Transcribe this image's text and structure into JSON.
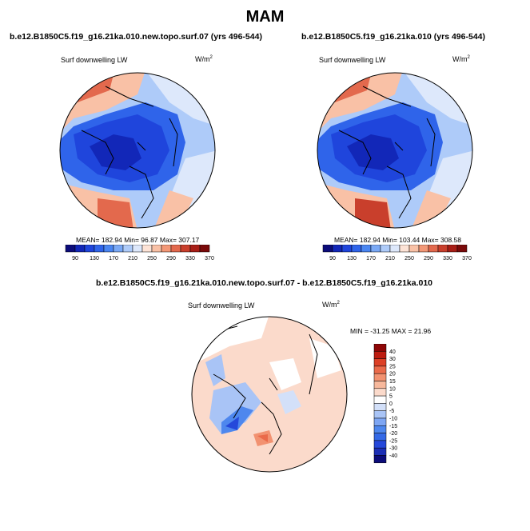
{
  "main_title": "MAM",
  "colors": {
    "abs_palette": [
      "#0c0c7a",
      "#1227b8",
      "#1f45dc",
      "#2f64ea",
      "#4a86f2",
      "#7aa9f6",
      "#aecbf9",
      "#dde8fb",
      "#fde3d6",
      "#f9c1a6",
      "#f39877",
      "#e3694d",
      "#c93f2c",
      "#a81e16",
      "#7a0a0a"
    ],
    "diff_palette": [
      "#0c0c7a",
      "#1c2fb5",
      "#2548da",
      "#3469e6",
      "#4e87ee",
      "#7ea6f3",
      "#a9c4f6",
      "#d3e0f9",
      "#ffffff",
      "#fbdacb",
      "#f7b89c",
      "#f29271",
      "#ea6a4a",
      "#dc4026",
      "#bd1c10",
      "#8e0606"
    ],
    "land_outline": "#000000"
  },
  "panels": [
    {
      "title": "b.e12.B1850C5.f19_g16.21ka.010.new.topo.surf.07 (yrs 496-544)",
      "variable": "Surf downwelling LW",
      "units": "W/m",
      "units_sup": "2",
      "stats": "MEAN= 182.94  Min=  96.87  Max= 307.17",
      "colorbar_labels": [
        "90",
        "130",
        "170",
        "210",
        "250",
        "290",
        "330",
        "370"
      ]
    },
    {
      "title": "b.e12.B1850C5.f19_g16.21ka.010 (yrs 496-544)",
      "variable": "Surf downwelling LW",
      "units": "W/m",
      "units_sup": "2",
      "stats": "MEAN= 182.94  Min= 103.44  Max= 308.58",
      "colorbar_labels": [
        "90",
        "130",
        "170",
        "210",
        "250",
        "290",
        "330",
        "370"
      ]
    }
  ],
  "diff_panel": {
    "title": "b.e12.B1850C5.f19_g16.21ka.010.new.topo.surf.07 - b.e12.B1850C5.f19_g16.21ka.010",
    "variable": "Surf downwelling LW",
    "units": "W/m",
    "units_sup": "2",
    "stats": "MIN = -31.25 MAX =  21.96",
    "colorbar_labels": [
      "40",
      "30",
      "25",
      "20",
      "15",
      "10",
      "5",
      "0",
      "-5",
      "-10",
      "-15",
      "-20",
      "-25",
      "-30",
      "-40"
    ]
  },
  "chart_data": [
    {
      "type": "heatmap",
      "projection": "north polar stereographic",
      "title": "b.e12.B1850C5.f19_g16.21ka.010.new.topo.surf.07 (yrs 496-544)",
      "variable": "Surf downwelling LW",
      "units": "W/m2",
      "mean": 182.94,
      "min": 96.87,
      "max": 307.17,
      "contour_levels": [
        90,
        110,
        130,
        150,
        170,
        190,
        210,
        230,
        250,
        270,
        290,
        310,
        330,
        350,
        370
      ]
    },
    {
      "type": "heatmap",
      "projection": "north polar stereographic",
      "title": "b.e12.B1850C5.f19_g16.21ka.010 (yrs 496-544)",
      "variable": "Surf downwelling LW",
      "units": "W/m2",
      "mean": 182.94,
      "min": 103.44,
      "max": 308.58,
      "contour_levels": [
        90,
        110,
        130,
        150,
        170,
        190,
        210,
        230,
        250,
        270,
        290,
        310,
        330,
        350,
        370
      ]
    },
    {
      "type": "heatmap",
      "projection": "north polar stereographic",
      "title": "b.e12.B1850C5.f19_g16.21ka.010.new.topo.surf.07 - b.e12.B1850C5.f19_g16.21ka.010",
      "variable": "Surf downwelling LW",
      "units": "W/m2",
      "min": -31.25,
      "max": 21.96,
      "contour_levels": [
        -40,
        -30,
        -25,
        -20,
        -15,
        -10,
        -5,
        0,
        5,
        10,
        15,
        20,
        25,
        30,
        40
      ]
    }
  ]
}
